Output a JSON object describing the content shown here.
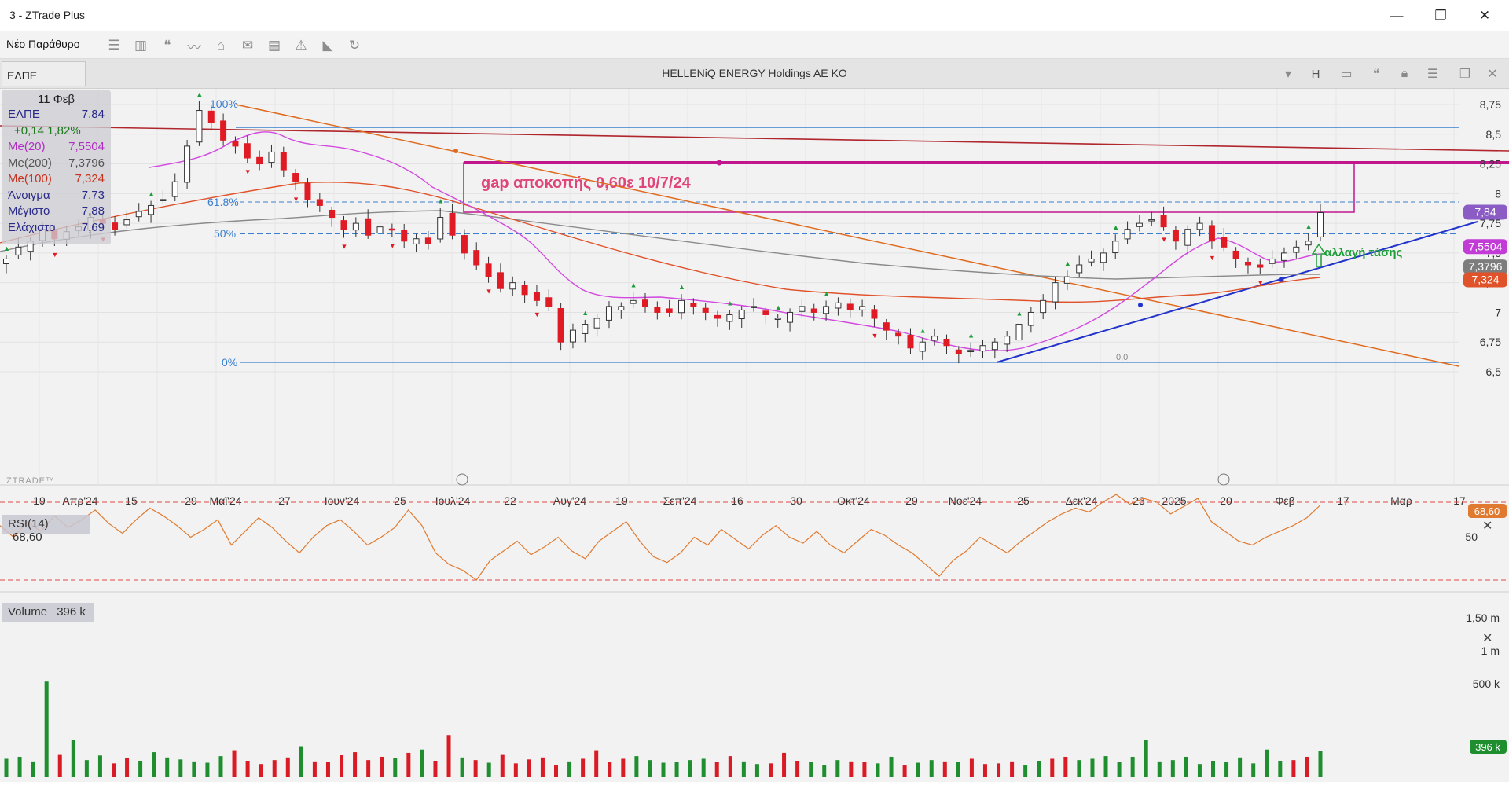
{
  "window": {
    "title": "3 - ZTrade Plus",
    "controls": {
      "minimize": "—",
      "restore": "❐",
      "close": "✕"
    }
  },
  "toolbar": {
    "new_window_label": "Νέο Παράθυρο",
    "icons": [
      "list-icon",
      "chart-bars-icon",
      "quote-icon",
      "line-chart-icon",
      "bank-icon",
      "mail-icon",
      "clipboard-icon",
      "alert-icon",
      "rss-icon",
      "refresh-icon"
    ]
  },
  "symbol_bar": {
    "symbol": "ΕΛΠΕ",
    "company_name": "HELLENiQ ENERGY Holdings AE KO",
    "h_label": "H"
  },
  "info_panel": {
    "date": "11 Φεβ",
    "rows": [
      {
        "label": "ΕΛΠΕ",
        "value": "7,84",
        "color": "#2a2a8a"
      },
      {
        "label": "+0,14  1,82%",
        "value": "",
        "color": "#1b7a1b"
      },
      {
        "label": "Me(20)",
        "value": "7,5504",
        "color": "#b12fc4"
      },
      {
        "label": "Me(200)",
        "value": "7,3796",
        "color": "#555555"
      },
      {
        "label": "Me(100)",
        "value": "7,324",
        "color": "#c8331f"
      },
      {
        "label": "Άνοιγμα",
        "value": "7,73",
        "color": "#2a2a8a"
      },
      {
        "label": "Μέγιστο",
        "value": "7,88",
        "color": "#2a2a8a"
      },
      {
        "label": "Ελάχιστο",
        "value": "7,69",
        "color": "#2a2a8a"
      }
    ]
  },
  "price_axis": {
    "ticks": [
      "8,75",
      "8,5",
      "8,25",
      "8",
      "7,75",
      "7,5",
      "7,25",
      "7",
      "6,75",
      "6,5"
    ],
    "badges": [
      {
        "text": "7,84",
        "value": 7.84,
        "color": "#8b5cc4"
      },
      {
        "text": "7,5504",
        "value": 7.5504,
        "color": "#c23bd6"
      },
      {
        "text": "7,3796",
        "value": 7.3796,
        "color": "#7d7d7d"
      },
      {
        "text": "7,324",
        "value": 7.324,
        "color": "#e0522a"
      }
    ]
  },
  "fib_levels": [
    {
      "label": "100%",
      "value": 8.75
    },
    {
      "label": "61.8%",
      "value": 7.96
    },
    {
      "label": "50%",
      "value": 7.74
    },
    {
      "label": "0%",
      "value": 6.54
    }
  ],
  "annotations": {
    "gap_text": "gap αποκοπής 0,60ε 10/7/24",
    "trend_change_text": "αλλαγή τάσης",
    "watermark": "ZTRADE™",
    "marker_label": "0,0"
  },
  "time_axis": {
    "labels": [
      "19",
      "Απρ'24",
      "15",
      "29",
      "Μαϊ'24",
      "27",
      "Ιουν'24",
      "25",
      "Ιουλ'24",
      "22",
      "Αυγ'24",
      "19",
      "Σεπ'24",
      "16",
      "30",
      "Οκτ'24",
      "29",
      "Νοε'24",
      "25",
      "Δεκ'24",
      "23",
      "2025",
      "20",
      "Φεβ",
      "17",
      "Μαρ",
      "17"
    ]
  },
  "rsi_panel": {
    "label": "RSI(14)",
    "value": "68,60",
    "axis_label": "50",
    "badge": "68,60"
  },
  "volume_panel": {
    "label": "Volume",
    "value": "396 k",
    "axis_labels": [
      "1,50 m",
      "1 m",
      "500 k"
    ],
    "badge": "396 k"
  },
  "colors": {
    "up_candle": "#1a1a1a",
    "down_candle": "#e01b24",
    "ma20": "#d248e0",
    "ma100": "#e0522a",
    "ma200": "#8a8a8a",
    "fib": "#3a7fd0",
    "gap_box": "#c2168c",
    "uptrend_line": "#2233cc",
    "downtrend_line": "#e06a1e",
    "rsi": "#e07a30"
  },
  "chart_data": {
    "type": "candlestick",
    "symbol": "ΕΛΠΕ",
    "price_range": [
      6.42,
      8.9
    ],
    "sparkline_closes": [
      7.45,
      7.55,
      7.6,
      7.7,
      7.62,
      7.68,
      7.72,
      7.8,
      7.75,
      7.7,
      7.78,
      7.85,
      7.9,
      7.95,
      8.1,
      8.4,
      8.7,
      8.6,
      8.45,
      8.4,
      8.3,
      8.25,
      8.35,
      8.2,
      8.1,
      7.95,
      7.9,
      7.8,
      7.7,
      7.75,
      7.65,
      7.72,
      7.7,
      7.6,
      7.62,
      7.58,
      7.8,
      7.65,
      7.5,
      7.4,
      7.3,
      7.2,
      7.25,
      7.15,
      7.1,
      7.05,
      6.75,
      6.85,
      6.9,
      6.95,
      7.05,
      7.05,
      7.1,
      7.05,
      7.0,
      7.0,
      7.1,
      7.05,
      7.0,
      6.95,
      6.98,
      7.02,
      7.05,
      6.98,
      6.95,
      7.0,
      7.05,
      7.0,
      7.05,
      7.08,
      7.02,
      7.05,
      6.95,
      6.85,
      6.8,
      6.7,
      6.75,
      6.8,
      6.72,
      6.65,
      6.68,
      6.72,
      6.75,
      6.8,
      6.9,
      7.0,
      7.1,
      7.25,
      7.3,
      7.4,
      7.45,
      7.5,
      7.6,
      7.7,
      7.75,
      7.78,
      7.72,
      7.6,
      7.7,
      7.75,
      7.6,
      7.55,
      7.45,
      7.4,
      7.38,
      7.45,
      7.5,
      7.55,
      7.6,
      7.84
    ],
    "rsi_values": [
      58,
      52,
      60,
      55,
      63,
      57,
      61,
      66,
      59,
      54,
      61,
      67,
      63,
      58,
      52,
      56,
      61,
      48,
      55,
      62,
      57,
      50,
      44,
      52,
      58,
      61,
      55,
      48,
      52,
      57,
      66,
      58,
      44,
      38,
      35,
      30,
      40,
      45,
      50,
      43,
      47,
      52,
      45,
      41,
      50,
      55,
      60,
      50,
      42,
      39,
      44,
      52,
      48,
      56,
      51,
      46,
      53,
      58,
      52,
      49,
      55,
      48,
      44,
      50,
      56,
      53,
      48,
      44,
      38,
      32,
      40,
      45,
      52,
      48,
      44,
      50,
      55,
      60,
      64,
      67,
      65,
      70,
      74,
      69,
      72,
      70,
      64,
      68,
      72,
      60,
      55,
      50,
      48,
      52,
      55,
      58,
      62,
      68.6
    ],
    "volume_k": [
      280,
      310,
      240,
      1450,
      350,
      560,
      260,
      330,
      210,
      290,
      250,
      380,
      300,
      270,
      240,
      220,
      320,
      410,
      250,
      200,
      260,
      300,
      470,
      240,
      230,
      340,
      380,
      260,
      310,
      290,
      370,
      420,
      250,
      640,
      300,
      260,
      220,
      350,
      210,
      270,
      300,
      190,
      240,
      280,
      410,
      230,
      280,
      320,
      260,
      220,
      230,
      260,
      280,
      230,
      320,
      240,
      200,
      210,
      370,
      250,
      230,
      190,
      260,
      240,
      230,
      210,
      310,
      190,
      220,
      260,
      240,
      230,
      280,
      200,
      210,
      240,
      190,
      250,
      280,
      310,
      260,
      280,
      320,
      230,
      310,
      560,
      240,
      260,
      310,
      200,
      250,
      230,
      300,
      210,
      420,
      250,
      260,
      310,
      396
    ]
  }
}
